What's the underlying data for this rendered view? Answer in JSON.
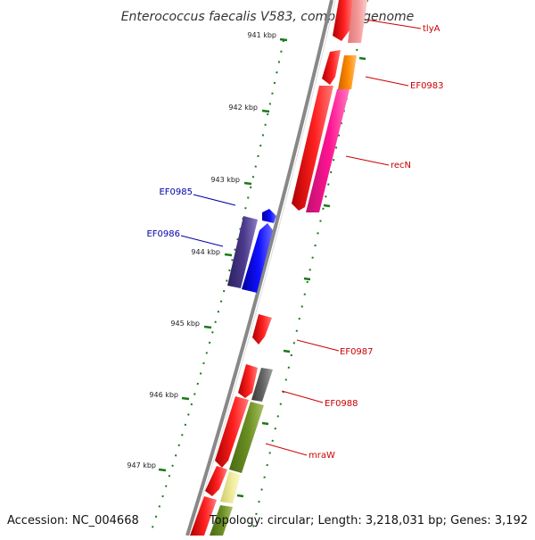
{
  "title": "Enterococcus faecalis V583, complete genome",
  "footer": {
    "accession": "Accession: NC_004668",
    "summary": "Topology: circular; Length: 3,218,031 bp; Genes: 3,192"
  },
  "scale": {
    "unit": "kbp",
    "ticks": [
      {
        "label": "941 kbp",
        "kbp": 941
      },
      {
        "label": "942 kbp",
        "kbp": 942
      },
      {
        "label": "943 kbp",
        "kbp": 943
      },
      {
        "label": "944 kbp",
        "kbp": 944
      },
      {
        "label": "945 kbp",
        "kbp": 945
      },
      {
        "label": "946 kbp",
        "kbp": 946
      },
      {
        "label": "947 kbp",
        "kbp": 947
      }
    ]
  },
  "gene_labels": [
    {
      "label": "tlyA",
      "color": "#cc0000"
    },
    {
      "label": "EF0983",
      "color": "#cc0000"
    },
    {
      "label": "recN",
      "color": "#cc0000"
    },
    {
      "label": "EF0985",
      "color": "#0000aa"
    },
    {
      "label": "EF0986",
      "color": "#0000aa"
    },
    {
      "label": "EF0987",
      "color": "#cc0000"
    },
    {
      "label": "EF0988",
      "color": "#cc0000"
    },
    {
      "label": "mraW",
      "color": "#cc0000"
    }
  ],
  "colors": {
    "backbone": "#888888",
    "tick_marks": "#1a7a1a",
    "forward_genes": "#ff0000",
    "reverse_genes": "#0000ff",
    "orange": "#ff8c00",
    "pink": "#ff1493",
    "light_pink": "#f59a9a",
    "gray": "#666666",
    "olive": "#6b8e23",
    "pale_yellow": "#eeeb9a",
    "purple": "#4b3a8c"
  }
}
